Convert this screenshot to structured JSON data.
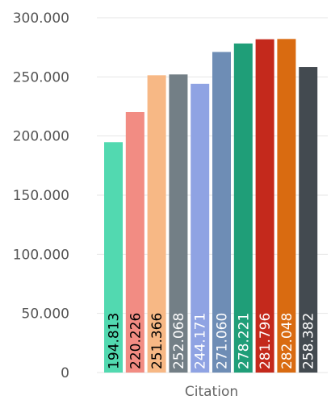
{
  "chart_data": {
    "type": "bar",
    "categories": [
      "Citation"
    ],
    "series": [
      {
        "values": [
          194.813
        ],
        "color": "#52d9b0",
        "label": "194.813",
        "label_color": "#000000"
      },
      {
        "values": [
          220.226
        ],
        "color": "#f28c83",
        "label": "220.226",
        "label_color": "#000000"
      },
      {
        "values": [
          251.366
        ],
        "color": "#f7b885",
        "label": "251.366",
        "label_color": "#000000"
      },
      {
        "values": [
          252.068
        ],
        "color": "#737f86",
        "label": "252.068",
        "label_color": "#ffffff"
      },
      {
        "values": [
          244.171
        ],
        "color": "#8fa3e3",
        "label": "244.171",
        "label_color": "#ffffff"
      },
      {
        "values": [
          271.06
        ],
        "color": "#6e8db5",
        "label": "271.060",
        "label_color": "#ffffff"
      },
      {
        "values": [
          278.221
        ],
        "color": "#1f9e78",
        "label": "278.221",
        "label_color": "#ffffff"
      },
      {
        "values": [
          281.796
        ],
        "color": "#c4291c",
        "label": "281.796",
        "label_color": "#ffffff"
      },
      {
        "values": [
          282.048
        ],
        "color": "#d96b11",
        "label": "282.048",
        "label_color": "#ffffff"
      },
      {
        "values": [
          258.382
        ],
        "color": "#434a50",
        "label": "258.382",
        "label_color": "#ffffff"
      }
    ],
    "y_ticks": [
      "0",
      "50.000",
      "100.000",
      "150.000",
      "200.000",
      "250.000",
      "300.000"
    ],
    "y_tick_values": [
      0,
      50,
      100,
      150,
      200,
      250,
      300
    ],
    "ylim": [
      0,
      300
    ],
    "grid": true,
    "legend": "none"
  }
}
